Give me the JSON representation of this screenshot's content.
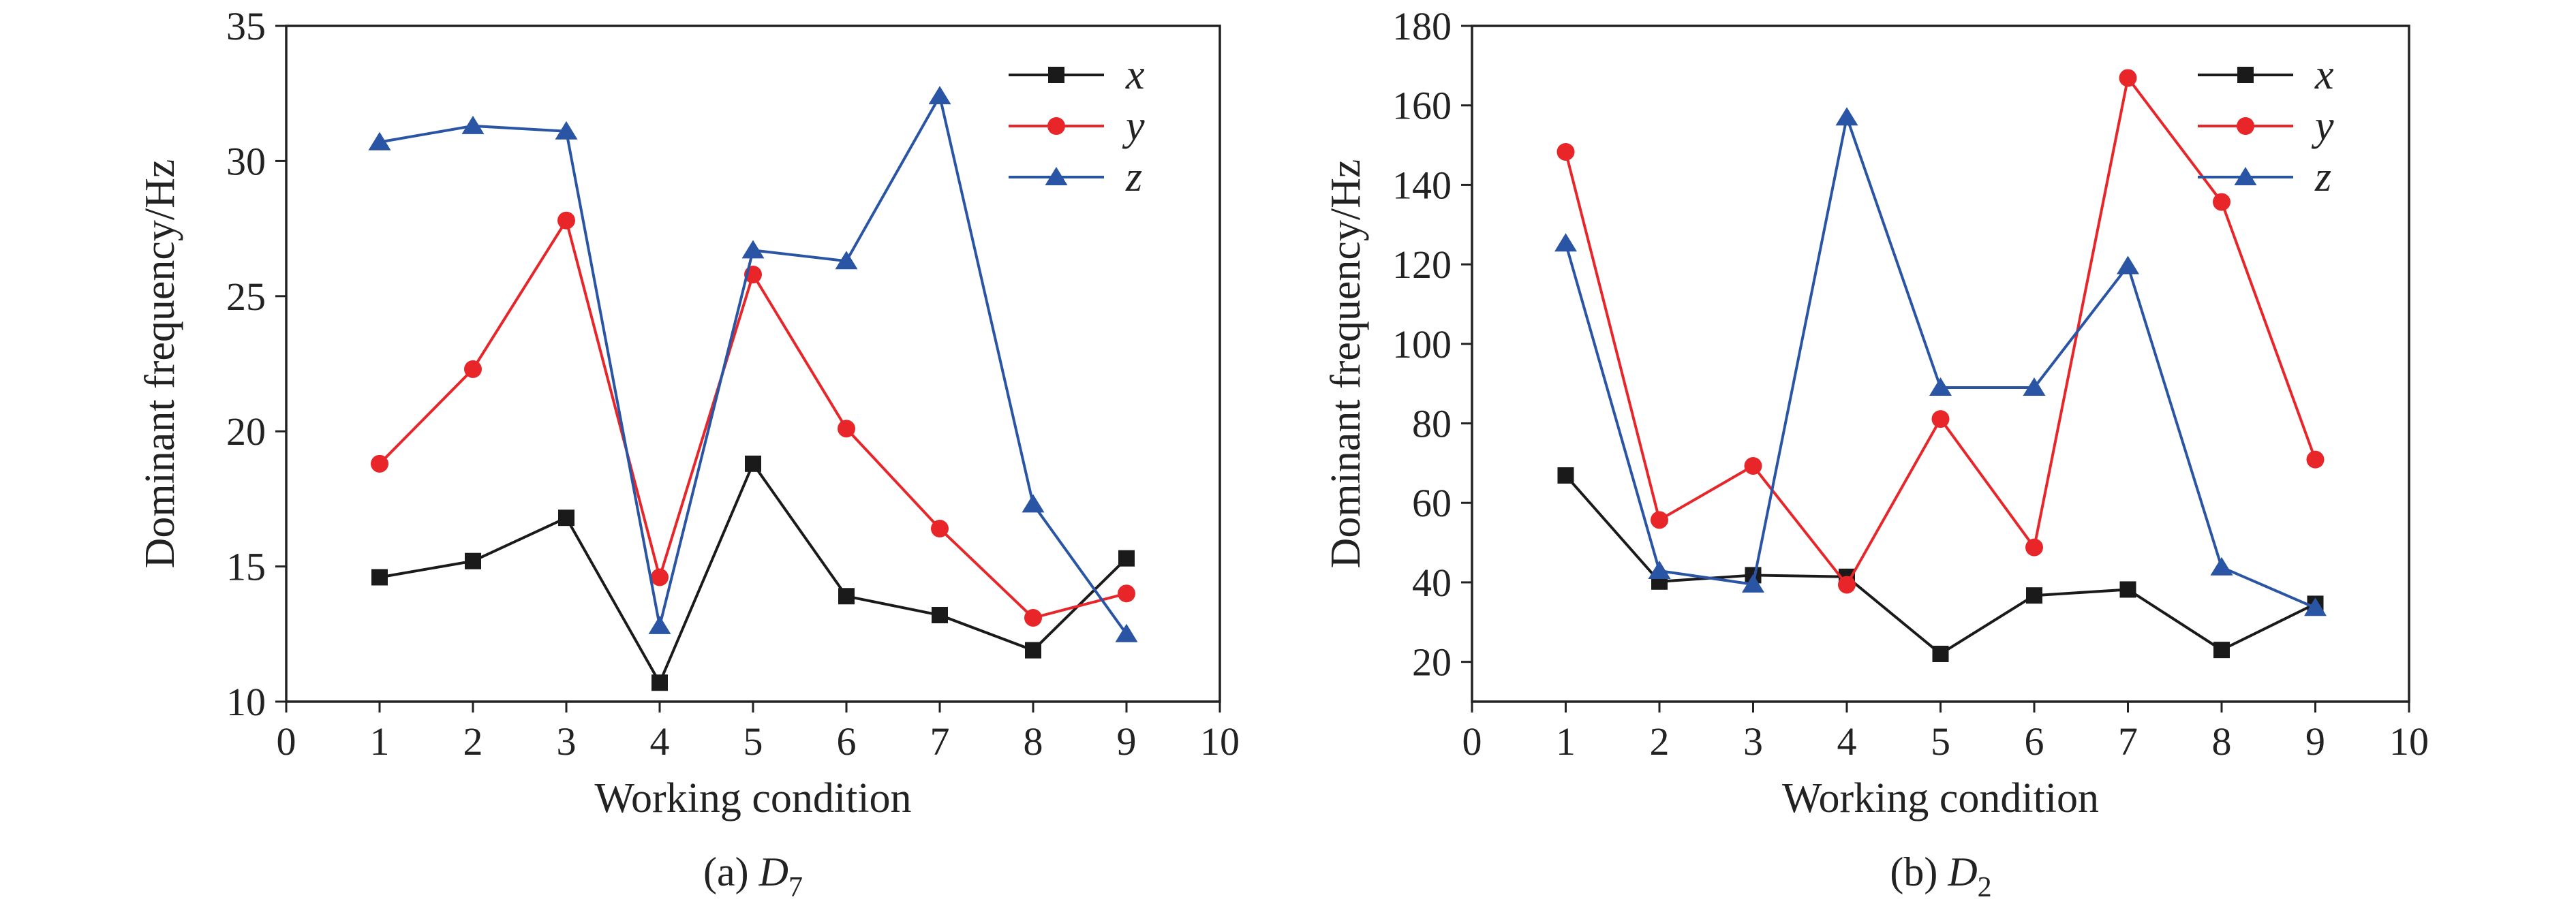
{
  "chart_data": [
    {
      "type": "line",
      "caption": {
        "prefix": "(a) ",
        "var": "D",
        "sub": "7"
      },
      "xlabel": "Working condition",
      "ylabel": "Dominant frequency/Hz",
      "xlim": [
        0,
        10
      ],
      "ylim": [
        10,
        35
      ],
      "xticks": [
        0,
        1,
        2,
        3,
        4,
        5,
        6,
        7,
        8,
        9,
        10
      ],
      "yticks": [
        10,
        15,
        20,
        25,
        30,
        35
      ],
      "grid": false,
      "legend_position": "top-right",
      "x": [
        1,
        2,
        3,
        4,
        5,
        6,
        7,
        8,
        9
      ],
      "series": [
        {
          "name": "x",
          "color": "#1a1a1a",
          "marker": "square",
          "values": [
            14.6,
            15.2,
            16.8,
            10.7,
            18.8,
            13.9,
            13.2,
            11.9,
            15.3
          ]
        },
        {
          "name": "y",
          "color": "#e8262a",
          "marker": "circle",
          "values": [
            18.8,
            22.3,
            27.8,
            14.6,
            25.8,
            20.1,
            16.4,
            13.1,
            14.0
          ]
        },
        {
          "name": "z",
          "color": "#2a55a4",
          "marker": "triangle",
          "values": [
            30.7,
            31.3,
            31.1,
            12.8,
            26.7,
            26.3,
            32.4,
            17.3,
            12.5
          ]
        }
      ]
    },
    {
      "type": "line",
      "caption": {
        "prefix": "(b) ",
        "var": "D",
        "sub": "2"
      },
      "xlabel": "Working condition",
      "ylabel": "Dominant frequency/Hz",
      "xlim": [
        0,
        10
      ],
      "ylim": [
        10,
        180
      ],
      "xticks": [
        0,
        1,
        2,
        3,
        4,
        5,
        6,
        7,
        8,
        9,
        10
      ],
      "yticks": [
        20,
        40,
        60,
        80,
        100,
        120,
        140,
        160,
        180
      ],
      "grid": false,
      "legend_position": "top-right",
      "x": [
        1,
        2,
        3,
        4,
        5,
        6,
        7,
        8,
        9
      ],
      "series": [
        {
          "name": "x",
          "color": "#1a1a1a",
          "marker": "square",
          "values": [
            66.9,
            40.2,
            41.8,
            41.4,
            22.0,
            36.7,
            38.2,
            23.0,
            34.6
          ]
        },
        {
          "name": "y",
          "color": "#e8262a",
          "marker": "circle",
          "values": [
            148.3,
            55.7,
            69.3,
            39.4,
            81.1,
            48.8,
            166.9,
            135.7,
            70.9
          ]
        },
        {
          "name": "z",
          "color": "#2a55a4",
          "marker": "triangle",
          "values": [
            125.3,
            42.9,
            39.5,
            157.0,
            89.0,
            89.0,
            119.6,
            43.8,
            33.6
          ]
        }
      ]
    }
  ]
}
